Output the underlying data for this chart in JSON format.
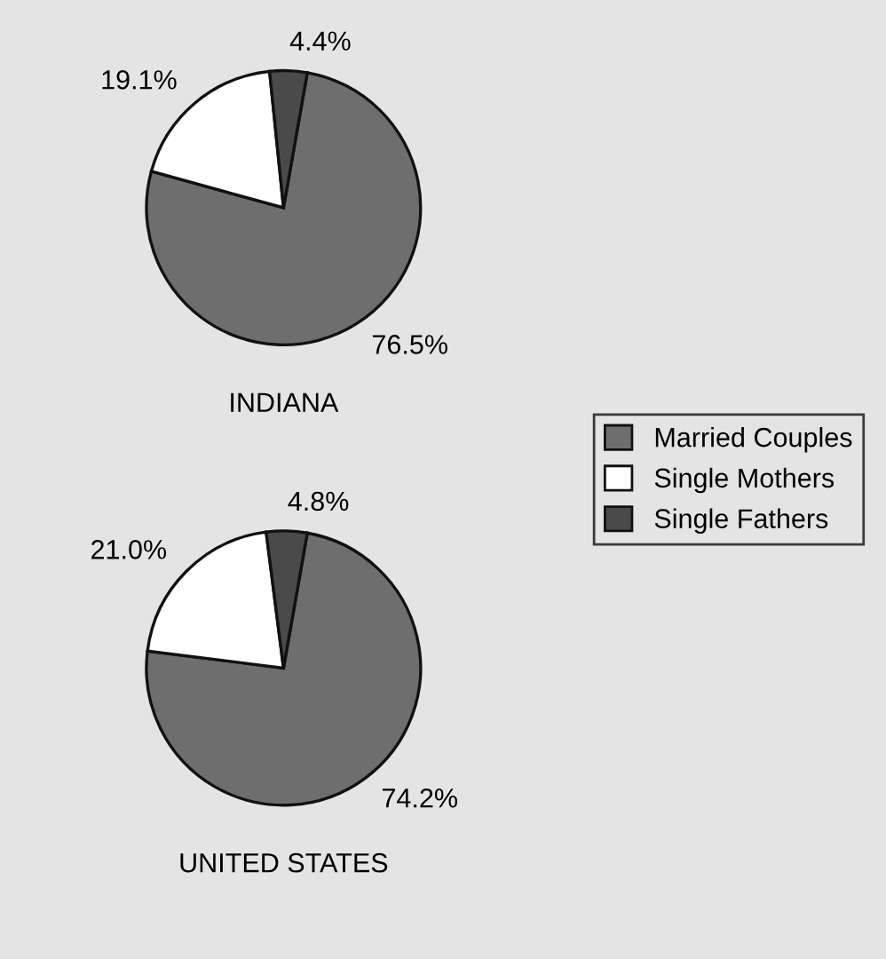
{
  "chart_data": {
    "type": "pie",
    "categories": [
      "Married Couples",
      "Single Mothers",
      "Single Fathers"
    ],
    "colors": [
      "#6e6e6e",
      "#ffffff",
      "#4a4a4a"
    ],
    "legend": "right",
    "series": [
      {
        "name": "INDIANA",
        "values": [
          76.5,
          19.1,
          4.4
        ],
        "value_labels": [
          "76.5%",
          "19.1%",
          "4.4%"
        ]
      },
      {
        "name": "UNITED STATES",
        "values": [
          74.2,
          21.0,
          4.8
        ],
        "value_labels": [
          "74.2%",
          "21.0%",
          "4.8%"
        ]
      }
    ]
  }
}
